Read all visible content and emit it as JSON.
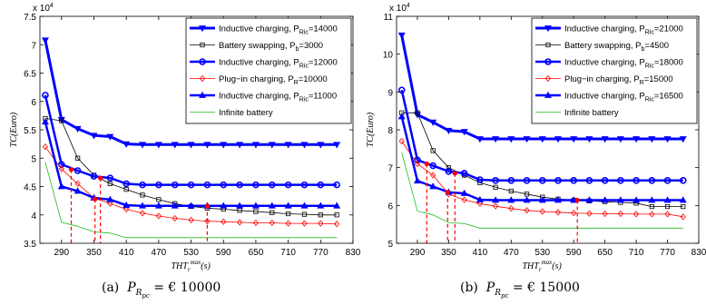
{
  "figure": {
    "captions": [
      {
        "label": "(a)",
        "pvar": "P",
        "sub": "R",
        "subsub": "pc",
        "value": "= € 10000"
      },
      {
        "label": "(b)",
        "pvar": "P",
        "sub": "R",
        "subsub": "pc",
        "value": "= € 15000"
      }
    ]
  },
  "chart_data": [
    {
      "type": "line",
      "ylabel": "TC(Euro)",
      "xlabel": "THT",
      "xlabel_sub": "r",
      "xlabel_sup": "max",
      "xlabel_unit": "(s)",
      "y_multiplier": "x 10",
      "y_multiplier_exp": "4",
      "xlim": [
        250,
        830
      ],
      "ylim": [
        3.5,
        7.5
      ],
      "xticks": [
        290,
        350,
        410,
        470,
        530,
        590,
        650,
        710,
        770,
        830
      ],
      "yticks": [
        3.5,
        4,
        4.5,
        5,
        5.5,
        6,
        6.5,
        7,
        7.5
      ],
      "x": [
        260,
        290,
        320,
        350,
        380,
        410,
        440,
        470,
        500,
        530,
        560,
        590,
        620,
        650,
        680,
        710,
        740,
        770,
        800
      ],
      "series": [
        {
          "name": "Inductive charging, P",
          "sub": "Ric",
          "eq": "=14000",
          "color": "#0000ff",
          "marker": "tri-down",
          "width": 3,
          "values": [
            7.08,
            5.68,
            5.52,
            5.4,
            5.38,
            5.25,
            5.24,
            5.24,
            5.24,
            5.24,
            5.24,
            5.24,
            5.24,
            5.24,
            5.24,
            5.24,
            5.24,
            5.24,
            5.24
          ]
        },
        {
          "name": "Battery swapping, P",
          "sub": "b",
          "eq": "=3000",
          "color": "#000000",
          "marker": "square",
          "width": 0.8,
          "values": [
            5.7,
            5.66,
            5.0,
            4.7,
            4.55,
            4.45,
            4.35,
            4.27,
            4.2,
            4.15,
            4.12,
            4.1,
            4.08,
            4.06,
            4.04,
            4.02,
            4.01,
            4.0,
            4.0
          ]
        },
        {
          "name": "Inductive charging, P",
          "sub": "Ric",
          "eq": "=12000",
          "color": "#0000ff",
          "marker": "circle",
          "width": 2.5,
          "values": [
            6.11,
            4.89,
            4.78,
            4.68,
            4.65,
            4.55,
            4.53,
            4.53,
            4.53,
            4.53,
            4.53,
            4.53,
            4.53,
            4.53,
            4.53,
            4.53,
            4.53,
            4.53,
            4.53
          ]
        },
        {
          "name": "Plug−in charging, P",
          "sub": "R",
          "eq": "=10000",
          "color": "#ff0000",
          "marker": "diamond",
          "width": 0.8,
          "values": [
            5.2,
            4.81,
            4.55,
            4.3,
            4.2,
            4.1,
            4.03,
            3.98,
            3.94,
            3.91,
            3.89,
            3.88,
            3.87,
            3.86,
            3.86,
            3.85,
            3.85,
            3.85,
            3.84
          ]
        },
        {
          "name": "Inductive charging, P",
          "sub": "Ric",
          "eq": "=11000",
          "color": "#0000ff",
          "marker": "tri-up",
          "width": 2.5,
          "values": [
            5.64,
            4.5,
            4.42,
            4.3,
            4.27,
            4.17,
            4.16,
            4.16,
            4.16,
            4.16,
            4.16,
            4.16,
            4.16,
            4.16,
            4.16,
            4.16,
            4.16,
            4.16,
            4.16
          ]
        },
        {
          "name": "Infinite battery",
          "sub": "",
          "eq": "",
          "color": "#22bb22",
          "marker": "none",
          "width": 0.8,
          "values": [
            4.93,
            3.87,
            3.8,
            3.7,
            3.68,
            3.6,
            3.6,
            3.6,
            3.6,
            3.6,
            3.6,
            3.6,
            3.6,
            3.6,
            3.6,
            3.6,
            3.6,
            3.6,
            3.6
          ]
        }
      ],
      "crossover_points": [
        {
          "x": 308,
          "y": 4.8
        },
        {
          "x": 352,
          "y": 4.28
        },
        {
          "x": 362,
          "y": 4.65
        },
        {
          "x": 560,
          "y": 4.16
        }
      ],
      "legend_position": "top-right",
      "grid": false
    },
    {
      "type": "line",
      "ylabel": "TC(Euro)",
      "xlabel": "THT",
      "xlabel_sub": "r",
      "xlabel_sup": "max",
      "xlabel_unit": "(s)",
      "y_multiplier": "x 10",
      "y_multiplier_exp": "4",
      "xlim": [
        250,
        830
      ],
      "ylim": [
        5,
        11
      ],
      "xticks": [
        290,
        350,
        410,
        470,
        530,
        590,
        650,
        710,
        770,
        830
      ],
      "yticks": [
        5,
        6,
        7,
        8,
        9,
        10,
        11
      ],
      "x": [
        260,
        290,
        320,
        350,
        380,
        410,
        440,
        470,
        500,
        530,
        560,
        590,
        620,
        650,
        680,
        710,
        740,
        770,
        800
      ],
      "series": [
        {
          "name": "Inductive charging, P",
          "sub": "Ric",
          "eq": "=21000",
          "color": "#0000ff",
          "marker": "tri-down",
          "width": 3,
          "values": [
            10.5,
            8.4,
            8.2,
            7.98,
            7.95,
            7.76,
            7.76,
            7.76,
            7.76,
            7.76,
            7.76,
            7.76,
            7.76,
            7.76,
            7.76,
            7.76,
            7.76,
            7.76,
            7.76
          ]
        },
        {
          "name": "Battery swapping, P",
          "sub": "b",
          "eq": "=4500",
          "color": "#000000",
          "marker": "square",
          "width": 0.8,
          "values": [
            8.45,
            8.45,
            7.45,
            7.0,
            6.8,
            6.6,
            6.48,
            6.38,
            6.3,
            6.22,
            6.17,
            6.14,
            6.12,
            6.1,
            6.08,
            6.06,
            5.97,
            5.97,
            5.97
          ]
        },
        {
          "name": "Inductive charging, P",
          "sub": "Ric",
          "eq": "=18000",
          "color": "#0000ff",
          "marker": "circle",
          "width": 2.5,
          "values": [
            9.05,
            7.2,
            7.05,
            6.9,
            6.85,
            6.68,
            6.66,
            6.66,
            6.66,
            6.66,
            6.66,
            6.66,
            6.66,
            6.66,
            6.66,
            6.66,
            6.66,
            6.66,
            6.66
          ]
        },
        {
          "name": "Plug−in charging, P",
          "sub": "R",
          "eq": "=15000",
          "color": "#ff0000",
          "marker": "diamond",
          "width": 0.8,
          "values": [
            7.7,
            7.1,
            6.8,
            6.3,
            6.15,
            6.05,
            5.98,
            5.92,
            5.87,
            5.84,
            5.82,
            5.8,
            5.79,
            5.78,
            5.78,
            5.77,
            5.77,
            5.77,
            5.7
          ]
        },
        {
          "name": "Inductive charging, P",
          "sub": "Ric",
          "eq": "=16500",
          "color": "#0000ff",
          "marker": "tri-up",
          "width": 2.5,
          "values": [
            8.35,
            6.65,
            6.5,
            6.35,
            6.32,
            6.15,
            6.14,
            6.14,
            6.14,
            6.14,
            6.14,
            6.14,
            6.14,
            6.14,
            6.14,
            6.14,
            6.14,
            6.14,
            6.14
          ]
        },
        {
          "name": "Infinite battery",
          "sub": "",
          "eq": "",
          "color": "#22bb22",
          "marker": "none",
          "width": 0.8,
          "values": [
            7.4,
            5.85,
            5.75,
            5.55,
            5.52,
            5.4,
            5.4,
            5.4,
            5.4,
            5.4,
            5.4,
            5.4,
            5.4,
            5.4,
            5.4,
            5.4,
            5.4,
            5.4,
            5.4
          ]
        }
      ],
      "crossover_points": [
        {
          "x": 308,
          "y": 7.1
        },
        {
          "x": 348,
          "y": 6.35
        },
        {
          "x": 362,
          "y": 6.85
        },
        {
          "x": 597,
          "y": 6.14
        }
      ],
      "legend_position": "top-right",
      "grid": false
    }
  ]
}
